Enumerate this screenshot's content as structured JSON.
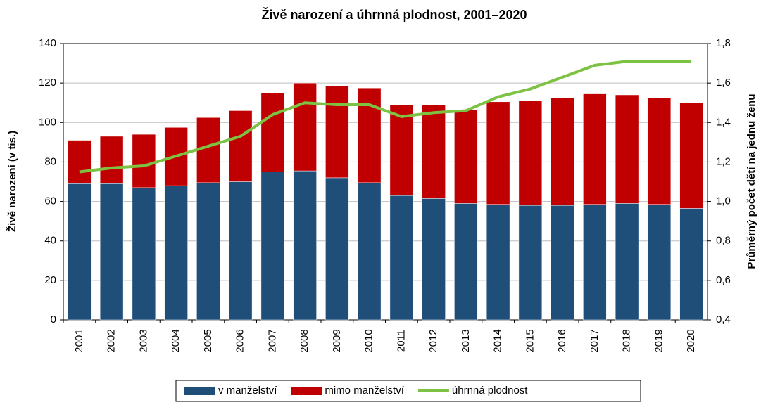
{
  "chart_data": {
    "type": "bar-line",
    "title": "Živě narození a úhrnná plodnost, 2001–2020",
    "ylabel": "Živě narození (v tis.)",
    "y2label": "Průměrný počet dětí na jednu ženu",
    "categories": [
      "2001",
      "2002",
      "2003",
      "2004",
      "2005",
      "2006",
      "2007",
      "2008",
      "2009",
      "2010",
      "2011",
      "2012",
      "2013",
      "2014",
      "2015",
      "2016",
      "2017",
      "2018",
      "2019",
      "2020"
    ],
    "series": [
      {
        "name": "v manželství",
        "color": "#1f4e79",
        "stack": true,
        "values": [
          69,
          69,
          67,
          68,
          69.5,
          70,
          75,
          75.5,
          72,
          69.5,
          63,
          61.5,
          59,
          58.5,
          58,
          58,
          58.5,
          59,
          58.5,
          56.5
        ]
      },
      {
        "name": "mimo manželství",
        "color": "#c00000",
        "stack": true,
        "values": [
          22,
          24,
          27,
          29.5,
          33,
          36,
          40,
          44.5,
          46.5,
          48,
          46,
          47.5,
          47.5,
          52,
          53,
          54.5,
          56,
          55,
          54,
          53.5
        ]
      },
      {
        "name": "úhrnná plodnost",
        "color": "#7dc242",
        "axis": "y2",
        "values": [
          1.15,
          1.17,
          1.18,
          1.23,
          1.28,
          1.33,
          1.44,
          1.5,
          1.49,
          1.49,
          1.43,
          1.45,
          1.46,
          1.53,
          1.57,
          1.63,
          1.69,
          1.71,
          1.71,
          1.71
        ]
      }
    ],
    "ylim": [
      0,
      140
    ],
    "yticks": [
      0,
      20,
      40,
      60,
      80,
      100,
      120,
      140
    ],
    "y2lim": [
      0.4,
      1.8
    ],
    "y2ticks": [
      {
        "value": 0.4,
        "label": "0,4"
      },
      {
        "value": 0.6,
        "label": "0,6"
      },
      {
        "value": 0.8,
        "label": "0,8"
      },
      {
        "value": 1.0,
        "label": "1,0"
      },
      {
        "value": 1.2,
        "label": "1,2"
      },
      {
        "value": 1.4,
        "label": "1,4"
      },
      {
        "value": 1.6,
        "label": "1,6"
      },
      {
        "value": 1.8,
        "label": "1,8"
      }
    ],
    "grid": true,
    "legend": "bottom"
  }
}
